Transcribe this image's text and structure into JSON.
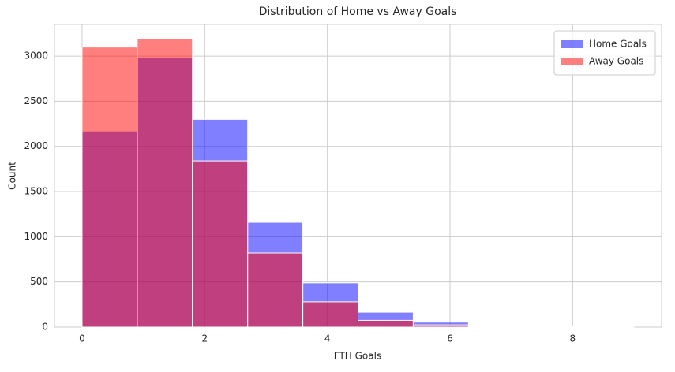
{
  "chart_data": {
    "type": "histogram",
    "title": "Distribution of Home vs Away Goals",
    "xlabel": "FTH Goals",
    "ylabel": "Count",
    "bins": [
      0,
      0.9,
      1.8,
      2.7,
      3.6,
      4.5,
      5.4,
      6.3,
      7.2,
      8.1,
      9
    ],
    "series": [
      {
        "name": "Home Goals",
        "color": "#0000ff",
        "values": [
          2170,
          2980,
          2300,
          1160,
          490,
          165,
          55,
          10,
          3,
          1
        ]
      },
      {
        "name": "Away Goals",
        "color": "#ff0000",
        "values": [
          3100,
          3190,
          1840,
          820,
          280,
          75,
          25,
          5,
          2,
          1
        ]
      }
    ],
    "alpha": 0.5,
    "xlim": [
      -0.45,
      9.45
    ],
    "xticks": [
      0,
      2,
      4,
      6,
      8
    ],
    "ylim": [
      0,
      3350
    ],
    "yticks": [
      0,
      500,
      1000,
      1500,
      2000,
      2500,
      3000
    ],
    "grid": true,
    "legend": "upper right"
  }
}
